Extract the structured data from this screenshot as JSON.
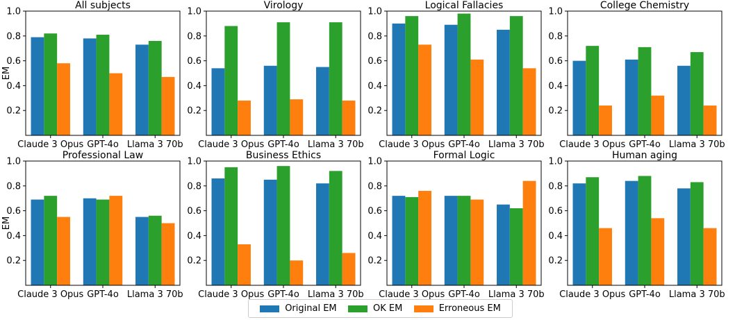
{
  "legend": {
    "items": [
      {
        "label": "Original EM",
        "color": "#1f77b4"
      },
      {
        "label": "OK EM",
        "color": "#2ca02c"
      },
      {
        "label": "Erroneous EM",
        "color": "#ff7f0e"
      }
    ]
  },
  "chart_data": [
    {
      "type": "bar",
      "title": "All subjects",
      "ylabel": "EM",
      "ylim": [
        0,
        1.0
      ],
      "yticks": [
        "0.2",
        "0.4",
        "0.6",
        "0.8",
        "1.0"
      ],
      "categories": [
        "Claude 3 Opus",
        "GPT-4o",
        "Llama 3 70b"
      ],
      "series": [
        {
          "name": "Original EM",
          "values": [
            0.79,
            0.78,
            0.73
          ]
        },
        {
          "name": "OK EM",
          "values": [
            0.82,
            0.81,
            0.76
          ]
        },
        {
          "name": "Erroneous EM",
          "values": [
            0.58,
            0.5,
            0.47
          ]
        }
      ]
    },
    {
      "type": "bar",
      "title": "Virology",
      "ylabel": "",
      "ylim": [
        0,
        1.0
      ],
      "yticks": [
        "0.2",
        "0.4",
        "0.6",
        "0.8",
        "1.0"
      ],
      "categories": [
        "Claude 3 Opus",
        "GPT-4o",
        "Llama 3 70b"
      ],
      "series": [
        {
          "name": "Original EM",
          "values": [
            0.54,
            0.56,
            0.55
          ]
        },
        {
          "name": "OK EM",
          "values": [
            0.88,
            0.91,
            0.91
          ]
        },
        {
          "name": "Erroneous EM",
          "values": [
            0.28,
            0.29,
            0.28
          ]
        }
      ]
    },
    {
      "type": "bar",
      "title": "Logical Fallacies",
      "ylabel": "",
      "ylim": [
        0,
        1.0
      ],
      "yticks": [
        "0.2",
        "0.4",
        "0.6",
        "0.8",
        "1.0"
      ],
      "categories": [
        "Claude 3 Opus",
        "GPT-4o",
        "Llama 3 70b"
      ],
      "series": [
        {
          "name": "Original EM",
          "values": [
            0.9,
            0.89,
            0.85
          ]
        },
        {
          "name": "OK EM",
          "values": [
            0.96,
            0.98,
            0.96
          ]
        },
        {
          "name": "Erroneous EM",
          "values": [
            0.73,
            0.61,
            0.54
          ]
        }
      ]
    },
    {
      "type": "bar",
      "title": "College Chemistry",
      "ylabel": "",
      "ylim": [
        0,
        1.0
      ],
      "yticks": [
        "0.2",
        "0.4",
        "0.6",
        "0.8",
        "1.0"
      ],
      "categories": [
        "Claude 3 Opus",
        "GPT-4o",
        "Llama 3 70b"
      ],
      "series": [
        {
          "name": "Original EM",
          "values": [
            0.6,
            0.61,
            0.56
          ]
        },
        {
          "name": "OK EM",
          "values": [
            0.72,
            0.71,
            0.67
          ]
        },
        {
          "name": "Erroneous EM",
          "values": [
            0.24,
            0.32,
            0.24
          ]
        }
      ]
    },
    {
      "type": "bar",
      "title": "Professional Law",
      "ylabel": "EM",
      "ylim": [
        0,
        1.0
      ],
      "yticks": [
        "0.2",
        "0.4",
        "0.6",
        "0.8",
        "1.0"
      ],
      "categories": [
        "Claude 3 Opus",
        "GPT-4o",
        "Llama 3 70b"
      ],
      "series": [
        {
          "name": "Original EM",
          "values": [
            0.69,
            0.7,
            0.55
          ]
        },
        {
          "name": "OK EM",
          "values": [
            0.72,
            0.69,
            0.56
          ]
        },
        {
          "name": "Erroneous EM",
          "values": [
            0.55,
            0.72,
            0.5
          ]
        }
      ]
    },
    {
      "type": "bar",
      "title": "Business Ethics",
      "ylabel": "",
      "ylim": [
        0,
        1.0
      ],
      "yticks": [
        "0.2",
        "0.4",
        "0.6",
        "0.8",
        "1.0"
      ],
      "categories": [
        "Claude 3 Opus",
        "GPT-4o",
        "Llama 3 70b"
      ],
      "series": [
        {
          "name": "Original EM",
          "values": [
            0.86,
            0.85,
            0.82
          ]
        },
        {
          "name": "OK EM",
          "values": [
            0.95,
            0.96,
            0.92
          ]
        },
        {
          "name": "Erroneous EM",
          "values": [
            0.33,
            0.2,
            0.26
          ]
        }
      ]
    },
    {
      "type": "bar",
      "title": "Formal Logic",
      "ylabel": "",
      "ylim": [
        0,
        1.0
      ],
      "yticks": [
        "0.2",
        "0.4",
        "0.6",
        "0.8",
        "1.0"
      ],
      "categories": [
        "Claude 3 Opus",
        "GPT-4o",
        "Llama 3 70b"
      ],
      "series": [
        {
          "name": "Original EM",
          "values": [
            0.72,
            0.72,
            0.65
          ]
        },
        {
          "name": "OK EM",
          "values": [
            0.71,
            0.72,
            0.62
          ]
        },
        {
          "name": "Erroneous EM",
          "values": [
            0.76,
            0.69,
            0.84
          ]
        }
      ]
    },
    {
      "type": "bar",
      "title": "Human aging",
      "ylabel": "",
      "ylim": [
        0,
        1.0
      ],
      "yticks": [
        "0.2",
        "0.4",
        "0.6",
        "0.8",
        "1.0"
      ],
      "categories": [
        "Claude 3 Opus",
        "GPT-4o",
        "Llama 3 70b"
      ],
      "series": [
        {
          "name": "Original EM",
          "values": [
            0.82,
            0.84,
            0.78
          ]
        },
        {
          "name": "OK EM",
          "values": [
            0.87,
            0.88,
            0.83
          ]
        },
        {
          "name": "Erroneous EM",
          "values": [
            0.46,
            0.54,
            0.46
          ]
        }
      ]
    }
  ]
}
